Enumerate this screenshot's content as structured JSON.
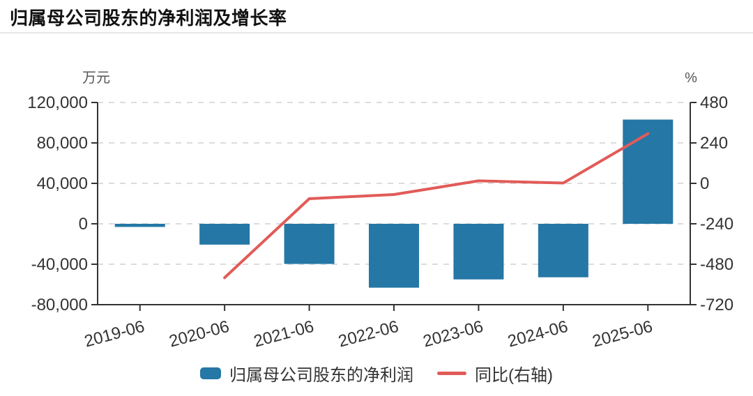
{
  "title": "归属母公司股东的净利润及增长率",
  "chart_data": {
    "type": "bar+line combo",
    "title": "归属母公司股东的净利润及增长率",
    "categories": [
      "2019-06",
      "2020-06",
      "2021-06",
      "2022-06",
      "2023-06",
      "2024-06",
      "2025-06"
    ],
    "series": [
      {
        "name": "归属母公司股东的净利润",
        "type": "bar",
        "axis": "left",
        "unit": "万元",
        "color": "#2577A6",
        "values": [
          -3100,
          -20600,
          -39700,
          -63200,
          -55000,
          -52900,
          103100
        ]
      },
      {
        "name": "同比(右轴)",
        "type": "line",
        "axis": "right",
        "unit": "%",
        "color": "#E15B58",
        "values": [
          null,
          -560,
          -91,
          -66,
          15,
          2,
          295
        ]
      }
    ],
    "left_axis": {
      "label": "万元",
      "min": -80000,
      "max": 120000,
      "ticks": [
        120000,
        80000,
        40000,
        0,
        -40000,
        -80000
      ]
    },
    "right_axis": {
      "label": "%",
      "min": -720,
      "max": 480,
      "ticks": [
        480,
        240,
        0,
        -240,
        -480,
        -720
      ]
    },
    "legend": {
      "position": "bottom",
      "items": [
        "归属母公司股东的净利润",
        "同比(右轴)"
      ]
    },
    "grid": {
      "horizontal": "dashed",
      "grid_color": "#dcdcdc",
      "axis_color": "#333333"
    }
  }
}
